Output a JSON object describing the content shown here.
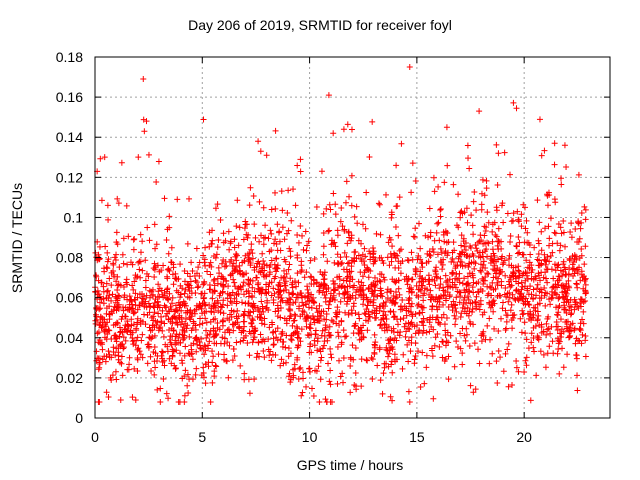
{
  "chart_data": {
    "type": "scatter",
    "title": "Day 206 of 2019, SRMTID for receiver foyl",
    "xlabel": "GPS time / hours",
    "ylabel": "SRMTID / TECUs",
    "xlim": [
      0,
      24
    ],
    "ylim": [
      0,
      0.18
    ],
    "xticks": [
      0,
      5,
      10,
      15,
      20
    ],
    "xtick_labels": [
      "0",
      "5",
      "10",
      "15",
      "20"
    ],
    "yticks": [
      0,
      0.02,
      0.04,
      0.06,
      0.08,
      0.1,
      0.12,
      0.14,
      0.16,
      0.18
    ],
    "ytick_labels": [
      "0",
      "0.02",
      "0.04",
      "0.06",
      "0.08",
      "0.1",
      "0.12",
      "0.14",
      "0.16",
      "0.18"
    ],
    "grid": true,
    "marker": "+",
    "color": "#ff0000",
    "series": [
      {
        "name": "SRMTID",
        "x_range": [
          0,
          22.9
        ],
        "approx_point_count": 3000,
        "sample_points": [
          [
            2.25,
            0.169
          ],
          [
            2.3,
            0.143
          ],
          [
            2.4,
            0.148
          ],
          [
            10.9,
            0.161
          ],
          [
            17.9,
            0.153
          ],
          [
            16.4,
            0.145
          ],
          [
            11.1,
            0.142
          ],
          [
            11.6,
            0.144
          ],
          [
            7.6,
            0.138
          ],
          [
            8.0,
            0.131
          ],
          [
            21.9,
            0.136
          ],
          [
            18.8,
            0.132
          ],
          [
            1.2,
            0.009
          ],
          [
            1.9,
            0.009
          ],
          [
            10.2,
            0.011
          ],
          [
            13.4,
            0.012
          ],
          [
            11.3,
            0.017
          ],
          [
            2.9,
            0.014
          ],
          [
            0.1,
            0.123
          ],
          [
            0.6,
            0.106
          ]
        ],
        "hourly_median": [
          0.052,
          0.047,
          0.055,
          0.052,
          0.049,
          0.053,
          0.057,
          0.06,
          0.062,
          0.054,
          0.052,
          0.063,
          0.058,
          0.052,
          0.058,
          0.061,
          0.066,
          0.069,
          0.071,
          0.065,
          0.061,
          0.062,
          0.06
        ],
        "hourly_spread": [
          0.018,
          0.017,
          0.019,
          0.018,
          0.017,
          0.019,
          0.019,
          0.021,
          0.02,
          0.018,
          0.019,
          0.021,
          0.02,
          0.018,
          0.019,
          0.019,
          0.02,
          0.021,
          0.021,
          0.02,
          0.019,
          0.02,
          0.019
        ]
      }
    ]
  }
}
